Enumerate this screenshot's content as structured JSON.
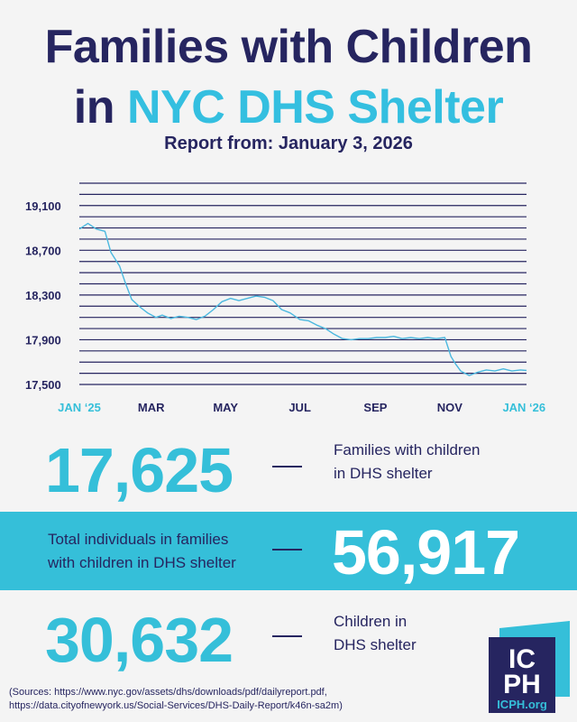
{
  "header": {
    "title_line1": "Families with Children",
    "title_line2_plain": "in ",
    "title_line2_accent": "NYC DHS Shelter",
    "subtitle": "Report from: January 3, 2026"
  },
  "colors": {
    "navy": "#262560",
    "accent": "#35bfd9",
    "line": "#4bb8df",
    "background": "#f4f4f4",
    "band": "#35bfd9"
  },
  "chart_data": {
    "type": "line",
    "title": "",
    "xlabel": "",
    "ylabel": "",
    "ylim": [
      17500,
      19300
    ],
    "yticks": [
      17500,
      17900,
      18300,
      18700,
      19100
    ],
    "ytick_labels": [
      "17,500",
      "17,900",
      "18,300",
      "18,700",
      "19,100"
    ],
    "grid": true,
    "x_tick_labels": [
      {
        "label": "JAN ‘25",
        "date": "2025-01-01",
        "highlight": true
      },
      {
        "label": "MAR",
        "date": "2025-03-01",
        "highlight": false
      },
      {
        "label": "MAY",
        "date": "2025-05-01",
        "highlight": false
      },
      {
        "label": "JUL",
        "date": "2025-07-01",
        "highlight": false
      },
      {
        "label": "SEP",
        "date": "2025-09-01",
        "highlight": false
      },
      {
        "label": "NOV",
        "date": "2025-11-01",
        "highlight": false
      },
      {
        "label": "JAN ‘26",
        "date": "2026-01-01",
        "highlight": true
      }
    ],
    "series": [
      {
        "points": [
          [
            "2025-01-01",
            18890
          ],
          [
            "2025-01-08",
            18940
          ],
          [
            "2025-01-15",
            18890
          ],
          [
            "2025-01-22",
            18870
          ],
          [
            "2025-01-27",
            18680
          ],
          [
            "2025-02-03",
            18560
          ],
          [
            "2025-02-08",
            18400
          ],
          [
            "2025-02-13",
            18260
          ],
          [
            "2025-02-20",
            18190
          ],
          [
            "2025-02-26",
            18140
          ],
          [
            "2025-03-05",
            18100
          ],
          [
            "2025-03-10",
            18120
          ],
          [
            "2025-03-17",
            18090
          ],
          [
            "2025-03-24",
            18110
          ],
          [
            "2025-03-31",
            18100
          ],
          [
            "2025-04-07",
            18080
          ],
          [
            "2025-04-14",
            18110
          ],
          [
            "2025-04-21",
            18170
          ],
          [
            "2025-04-28",
            18240
          ],
          [
            "2025-05-05",
            18270
          ],
          [
            "2025-05-12",
            18250
          ],
          [
            "2025-05-19",
            18270
          ],
          [
            "2025-05-26",
            18290
          ],
          [
            "2025-06-02",
            18280
          ],
          [
            "2025-06-09",
            18250
          ],
          [
            "2025-06-16",
            18170
          ],
          [
            "2025-06-23",
            18140
          ],
          [
            "2025-07-01",
            18080
          ],
          [
            "2025-07-08",
            18070
          ],
          [
            "2025-07-15",
            18030
          ],
          [
            "2025-07-22",
            18000
          ],
          [
            "2025-07-29",
            17950
          ],
          [
            "2025-08-05",
            17910
          ],
          [
            "2025-08-12",
            17900
          ],
          [
            "2025-08-19",
            17910
          ],
          [
            "2025-08-26",
            17910
          ],
          [
            "2025-09-02",
            17920
          ],
          [
            "2025-09-09",
            17920
          ],
          [
            "2025-09-16",
            17930
          ],
          [
            "2025-09-23",
            17910
          ],
          [
            "2025-09-30",
            17920
          ],
          [
            "2025-10-07",
            17910
          ],
          [
            "2025-10-14",
            17920
          ],
          [
            "2025-10-21",
            17910
          ],
          [
            "2025-10-28",
            17920
          ],
          [
            "2025-11-02",
            17750
          ],
          [
            "2025-11-06",
            17680
          ],
          [
            "2025-11-10",
            17620
          ],
          [
            "2025-11-17",
            17580
          ],
          [
            "2025-11-24",
            17610
          ],
          [
            "2025-12-01",
            17630
          ],
          [
            "2025-12-08",
            17620
          ],
          [
            "2025-12-15",
            17640
          ],
          [
            "2025-12-22",
            17620
          ],
          [
            "2025-12-29",
            17630
          ],
          [
            "2026-01-03",
            17625
          ]
        ]
      }
    ]
  },
  "stats": {
    "families": {
      "value": "17,625",
      "label_line1": "Families with children",
      "label_line2": "in DHS shelter"
    },
    "individuals": {
      "value": "56,917",
      "label_line1": "Total individuals in families",
      "label_line2": "with children in DHS shelter"
    },
    "children": {
      "value": "30,632",
      "label_line1": "Children in",
      "label_line2": "DHS shelter"
    }
  },
  "sources": {
    "line1": "(Sources: https://www.nyc.gov/assets/dhs/downloads/pdf/dailyreport.pdf,",
    "line2": "https://data.cityofnewyork.us/Social-Services/DHS-Daily-Report/k46n-sa2m)"
  },
  "logo": {
    "letters_top": "IC",
    "letters_bottom": "PH",
    "url": "ICPH.org"
  }
}
